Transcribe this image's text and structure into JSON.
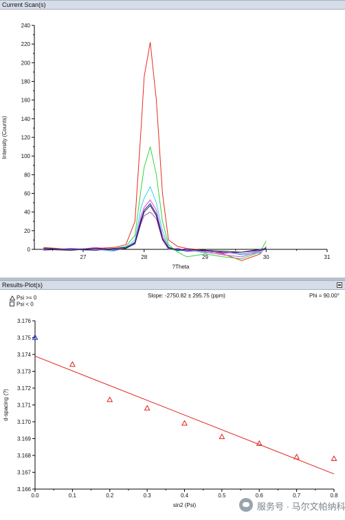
{
  "panel1": {
    "title": "Current Scan(s)"
  },
  "panel2": {
    "title": "Results-Plot(s)",
    "legend": [
      {
        "symbol": "triangle",
        "label": "Psi >= 0"
      },
      {
        "symbol": "square",
        "label": "Psi <  0"
      }
    ],
    "slope_text": "Slope: -2750.82 ± 295.75 (ppm)",
    "phi_text": "Phi = 90.00°"
  },
  "watermark": {
    "icon": "wechat-icon",
    "text": "服务号 · 马尔文帕纳科"
  },
  "colors": {
    "header_bg": "#d6dde8",
    "fit_line": "#e0201a",
    "marker_pos": "#e0201a",
    "marker_blue": "#1a1ad6"
  },
  "chart_data": [
    {
      "type": "line",
      "title": "",
      "xlabel": "?Theta",
      "ylabel": "Intensity (Counts)",
      "xlim": [
        26.2,
        31
      ],
      "ylim": [
        0,
        240
      ],
      "xticks": [
        27,
        28,
        29,
        30,
        31
      ],
      "yticks": [
        0,
        20,
        40,
        60,
        80,
        100,
        120,
        140,
        160,
        180,
        200,
        220,
        240
      ],
      "grid": false,
      "series": [
        {
          "color": "#e8281e",
          "x": [
            26.35,
            26.8,
            27.2,
            27.5,
            27.7,
            27.85,
            27.95,
            28.0,
            28.1,
            28.2,
            28.3,
            28.4,
            28.55,
            28.7,
            29.0,
            29.3,
            29.6,
            29.9,
            30.0
          ],
          "values": [
            2,
            0,
            1,
            2,
            5,
            30,
            130,
            185,
            222,
            160,
            60,
            10,
            3,
            1,
            -1,
            -5,
            -12,
            -5,
            3
          ]
        },
        {
          "color": "#33d333",
          "x": [
            26.35,
            26.8,
            27.2,
            27.5,
            27.7,
            27.85,
            27.95,
            28.0,
            28.1,
            28.2,
            28.3,
            28.4,
            28.55,
            28.7,
            29.0,
            29.3,
            29.6,
            29.9,
            30.0
          ],
          "values": [
            1,
            0,
            -1,
            1,
            3,
            15,
            65,
            88,
            110,
            80,
            30,
            5,
            -3,
            -8,
            -5,
            -8,
            -10,
            -3,
            9
          ]
        },
        {
          "color": "#2ed4ee",
          "x": [
            26.35,
            26.8,
            27.2,
            27.5,
            27.7,
            27.85,
            27.95,
            28.0,
            28.1,
            28.2,
            28.3,
            28.4,
            28.55,
            28.7,
            29.0,
            29.3,
            29.6,
            29.9,
            30.0
          ],
          "values": [
            -1,
            1,
            0,
            -2,
            2,
            10,
            45,
            55,
            67,
            50,
            20,
            3,
            -2,
            0,
            -4,
            -2,
            -6,
            -4,
            2
          ]
        },
        {
          "color": "#e040e0",
          "x": [
            26.35,
            26.8,
            27.2,
            27.5,
            27.7,
            27.85,
            27.95,
            28.0,
            28.1,
            28.2,
            28.3,
            28.4,
            28.55,
            28.7,
            29.0,
            29.3,
            29.6,
            29.9,
            30.0
          ],
          "values": [
            0,
            -1,
            2,
            0,
            1,
            8,
            36,
            45,
            53,
            42,
            15,
            2,
            -1,
            1,
            -3,
            -6,
            -8,
            -2,
            1
          ]
        },
        {
          "color": "#1a1ab0",
          "x": [
            26.35,
            26.8,
            27.2,
            27.5,
            27.7,
            27.85,
            27.95,
            28.0,
            28.1,
            28.2,
            28.3,
            28.4,
            28.55,
            28.7,
            29.0,
            29.3,
            29.6,
            29.9,
            30.0
          ],
          "values": [
            1,
            0,
            -1,
            1,
            2,
            7,
            32,
            42,
            49,
            38,
            12,
            1,
            0,
            -2,
            -1,
            -4,
            -3,
            -1,
            0
          ]
        },
        {
          "color": "#a050c8",
          "x": [
            26.35,
            26.8,
            27.2,
            27.5,
            27.7,
            27.85,
            27.95,
            28.0,
            28.1,
            28.2,
            28.3,
            28.4,
            28.55,
            28.7,
            29.0,
            29.3,
            29.6,
            29.9,
            30.0
          ],
          "values": [
            -1,
            1,
            0,
            -1,
            1,
            6,
            28,
            36,
            40,
            33,
            10,
            0,
            1,
            -1,
            -2,
            -3,
            -5,
            -2,
            2
          ]
        },
        {
          "color": "#222222",
          "x": [
            26.35,
            26.8,
            27.2,
            27.5,
            27.7,
            27.85,
            27.95,
            28.0,
            28.1,
            28.2,
            28.3,
            28.4,
            28.55,
            28.7,
            29.0,
            29.3,
            29.6,
            29.9,
            30.0
          ],
          "values": [
            0,
            -1,
            1,
            0,
            1,
            6,
            30,
            40,
            47,
            36,
            11,
            2,
            -1,
            0,
            -1,
            -2,
            -3,
            0,
            1
          ]
        }
      ]
    },
    {
      "type": "scatter",
      "title": "",
      "xlabel": "sin2 (Psi)",
      "ylabel": "d-spacing (?)",
      "xlim": [
        0,
        0.8
      ],
      "ylim": [
        3.166,
        3.176
      ],
      "xticks": [
        0.0,
        0.1,
        0.2,
        0.3,
        0.4,
        0.5,
        0.6,
        0.7,
        0.8
      ],
      "xtick_labels": [
        "0.0",
        "0.1",
        "0.2",
        "0.3",
        "0.4",
        "0.5",
        "0.6",
        "0.7",
        "0.8"
      ],
      "yticks": [
        3.166,
        3.167,
        3.168,
        3.169,
        3.17,
        3.171,
        3.172,
        3.173,
        3.174,
        3.175,
        3.176
      ],
      "ytick_labels": [
        "3.166",
        "3.167",
        "3.168",
        "3.169",
        "3.170",
        "3.171",
        "3.172",
        "3.173",
        "3.174",
        "3.175",
        "3.176"
      ],
      "grid": false,
      "series": [
        {
          "name": "Psi >= 0",
          "marker": "triangle",
          "x": [
            0.0,
            0.1,
            0.2,
            0.3,
            0.4,
            0.5,
            0.6,
            0.7,
            0.8
          ],
          "values": [
            3.175,
            3.1734,
            3.1713,
            3.1708,
            3.1699,
            3.1691,
            3.1687,
            3.1679,
            3.1678
          ],
          "colors": [
            "#1a1ad6",
            "#e0201a",
            "#e0201a",
            "#e0201a",
            "#e0201a",
            "#e0201a",
            "#e0201a",
            "#e0201a",
            "#e0201a"
          ]
        }
      ],
      "fit_line": {
        "x": [
          0.0,
          0.8
        ],
        "values": [
          3.1739,
          3.1669
        ]
      }
    }
  ]
}
